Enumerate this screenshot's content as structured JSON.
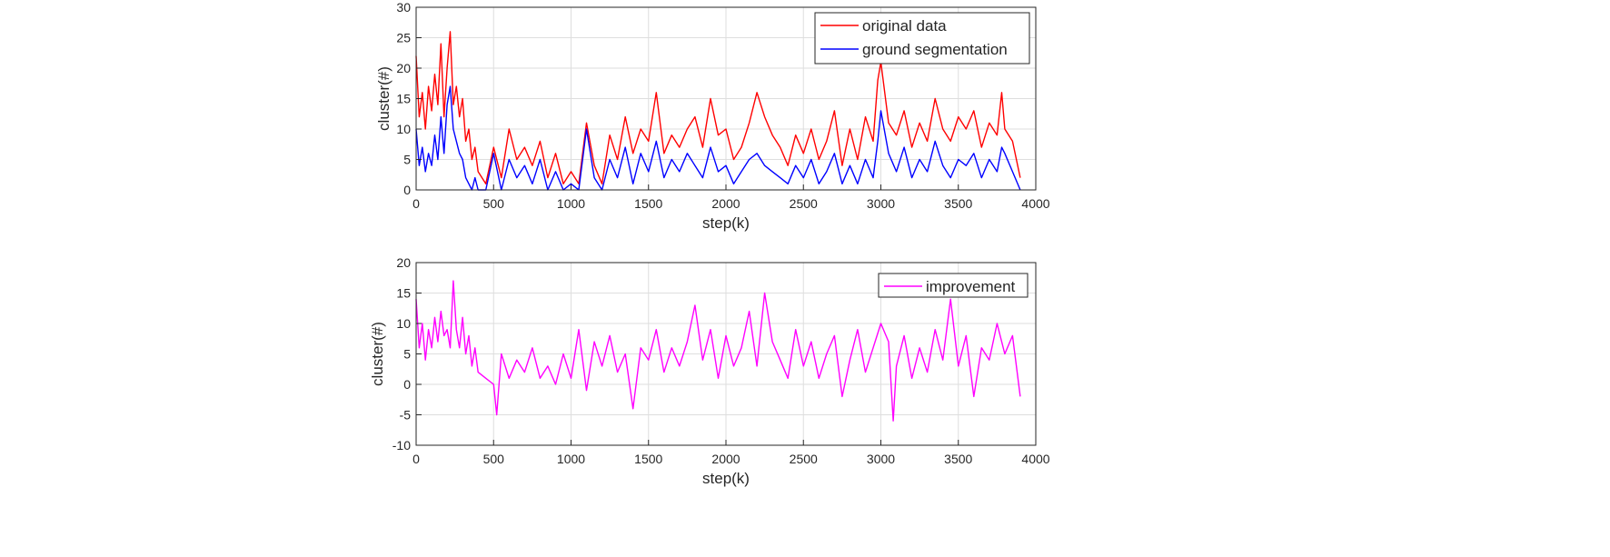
{
  "chart_data": [
    {
      "type": "line",
      "title": "",
      "xlabel": "step(k)",
      "ylabel": "cluster(#)",
      "xlim": [
        0,
        4000
      ],
      "ylim": [
        0,
        30
      ],
      "xticks": [
        0,
        500,
        1000,
        1500,
        2000,
        2500,
        3000,
        3500,
        4000
      ],
      "yticks": [
        0,
        5,
        10,
        15,
        20,
        25,
        30
      ],
      "grid": true,
      "legend_position": "top-right",
      "series": [
        {
          "name": "original data",
          "color": "#ff0000",
          "x": [
            0,
            20,
            40,
            60,
            80,
            100,
            120,
            140,
            160,
            180,
            200,
            220,
            240,
            260,
            280,
            300,
            320,
            340,
            360,
            380,
            400,
            450,
            500,
            550,
            600,
            650,
            700,
            750,
            800,
            850,
            900,
            950,
            1000,
            1050,
            1100,
            1150,
            1200,
            1250,
            1300,
            1350,
            1400,
            1450,
            1500,
            1550,
            1600,
            1650,
            1700,
            1750,
            1800,
            1850,
            1900,
            1950,
            2000,
            2050,
            2100,
            2150,
            2200,
            2250,
            2300,
            2350,
            2400,
            2450,
            2500,
            2550,
            2600,
            2650,
            2700,
            2750,
            2800,
            2850,
            2900,
            2950,
            2980,
            3000,
            3050,
            3100,
            3150,
            3200,
            3250,
            3300,
            3350,
            3400,
            3450,
            3500,
            3550,
            3600,
            3650,
            3700,
            3750,
            3780,
            3800,
            3850,
            3900
          ],
          "y": [
            22,
            12,
            16,
            10,
            17,
            13,
            19,
            14,
            24,
            12,
            20,
            26,
            14,
            17,
            12,
            15,
            8,
            10,
            5,
            7,
            3,
            1,
            7,
            2,
            10,
            5,
            7,
            4,
            8,
            2,
            6,
            1,
            3,
            1,
            11,
            4,
            1,
            9,
            5,
            12,
            6,
            10,
            8,
            16,
            6,
            9,
            7,
            10,
            12,
            7,
            15,
            9,
            10,
            5,
            7,
            11,
            16,
            12,
            9,
            7,
            4,
            9,
            6,
            10,
            5,
            8,
            13,
            4,
            10,
            5,
            12,
            8,
            18,
            21,
            11,
            9,
            13,
            7,
            11,
            8,
            15,
            10,
            8,
            12,
            10,
            13,
            7,
            11,
            9,
            16,
            10,
            8,
            2
          ]
        },
        {
          "name": "ground segmentation",
          "color": "#0000ff",
          "x": [
            0,
            20,
            40,
            60,
            80,
            100,
            120,
            140,
            160,
            180,
            200,
            220,
            240,
            260,
            280,
            300,
            320,
            340,
            360,
            380,
            400,
            450,
            500,
            550,
            600,
            650,
            700,
            750,
            800,
            850,
            900,
            950,
            1000,
            1050,
            1100,
            1150,
            1200,
            1250,
            1300,
            1350,
            1400,
            1450,
            1500,
            1550,
            1600,
            1650,
            1700,
            1750,
            1800,
            1850,
            1900,
            1950,
            2000,
            2050,
            2100,
            2150,
            2200,
            2250,
            2300,
            2350,
            2400,
            2450,
            2500,
            2550,
            2600,
            2650,
            2700,
            2750,
            2800,
            2850,
            2900,
            2950,
            2980,
            3000,
            3050,
            3100,
            3150,
            3200,
            3250,
            3300,
            3350,
            3400,
            3450,
            3500,
            3550,
            3600,
            3650,
            3700,
            3750,
            3780,
            3800,
            3850,
            3900
          ],
          "y": [
            10,
            4,
            7,
            3,
            6,
            4,
            9,
            5,
            12,
            6,
            14,
            17,
            10,
            8,
            6,
            5,
            2,
            1,
            0,
            2,
            0,
            0,
            6,
            0,
            5,
            2,
            4,
            1,
            5,
            0,
            3,
            0,
            1,
            0,
            10,
            2,
            0,
            5,
            2,
            7,
            1,
            6,
            3,
            8,
            2,
            5,
            3,
            6,
            4,
            2,
            7,
            3,
            4,
            1,
            3,
            5,
            6,
            4,
            3,
            2,
            1,
            4,
            2,
            5,
            1,
            3,
            6,
            1,
            4,
            1,
            5,
            2,
            8,
            13,
            6,
            3,
            7,
            2,
            5,
            3,
            8,
            4,
            2,
            5,
            4,
            6,
            2,
            5,
            3,
            7,
            6,
            3,
            0
          ]
        }
      ]
    },
    {
      "type": "line",
      "title": "",
      "xlabel": "step(k)",
      "ylabel": "cluster(#)",
      "xlim": [
        0,
        4000
      ],
      "ylim": [
        -10,
        20
      ],
      "xticks": [
        0,
        500,
        1000,
        1500,
        2000,
        2500,
        3000,
        3500,
        4000
      ],
      "yticks": [
        -10,
        -5,
        0,
        5,
        10,
        15,
        20
      ],
      "grid": true,
      "legend_position": "top-right",
      "series": [
        {
          "name": "improvement",
          "color": "#ff00ff",
          "x": [
            0,
            20,
            40,
            60,
            80,
            100,
            120,
            140,
            160,
            180,
            200,
            220,
            240,
            260,
            280,
            300,
            320,
            340,
            360,
            380,
            400,
            450,
            500,
            520,
            550,
            600,
            650,
            700,
            750,
            800,
            850,
            900,
            950,
            1000,
            1050,
            1100,
            1150,
            1200,
            1250,
            1300,
            1350,
            1400,
            1450,
            1500,
            1550,
            1600,
            1650,
            1700,
            1750,
            1800,
            1850,
            1900,
            1950,
            2000,
            2050,
            2100,
            2150,
            2200,
            2250,
            2300,
            2350,
            2400,
            2450,
            2500,
            2550,
            2600,
            2650,
            2700,
            2750,
            2800,
            2850,
            2900,
            2950,
            3000,
            3050,
            3080,
            3100,
            3150,
            3200,
            3250,
            3300,
            3350,
            3400,
            3450,
            3500,
            3550,
            3600,
            3650,
            3700,
            3750,
            3800,
            3850,
            3900
          ],
          "y": [
            14,
            6,
            10,
            4,
            9,
            6,
            11,
            7,
            12,
            8,
            9,
            6,
            17,
            9,
            6,
            11,
            5,
            8,
            3,
            6,
            2,
            1,
            0,
            -5,
            5,
            1,
            4,
            2,
            6,
            1,
            3,
            0,
            5,
            1,
            9,
            -1,
            7,
            3,
            8,
            2,
            5,
            -4,
            6,
            4,
            9,
            2,
            6,
            3,
            7,
            13,
            4,
            9,
            1,
            8,
            3,
            6,
            12,
            3,
            15,
            7,
            4,
            1,
            9,
            3,
            7,
            1,
            5,
            8,
            -2,
            4,
            9,
            2,
            6,
            10,
            7,
            -6,
            3,
            8,
            1,
            6,
            2,
            9,
            4,
            14,
            3,
            8,
            -2,
            6,
            4,
            10,
            5,
            8,
            -2
          ]
        }
      ]
    }
  ]
}
